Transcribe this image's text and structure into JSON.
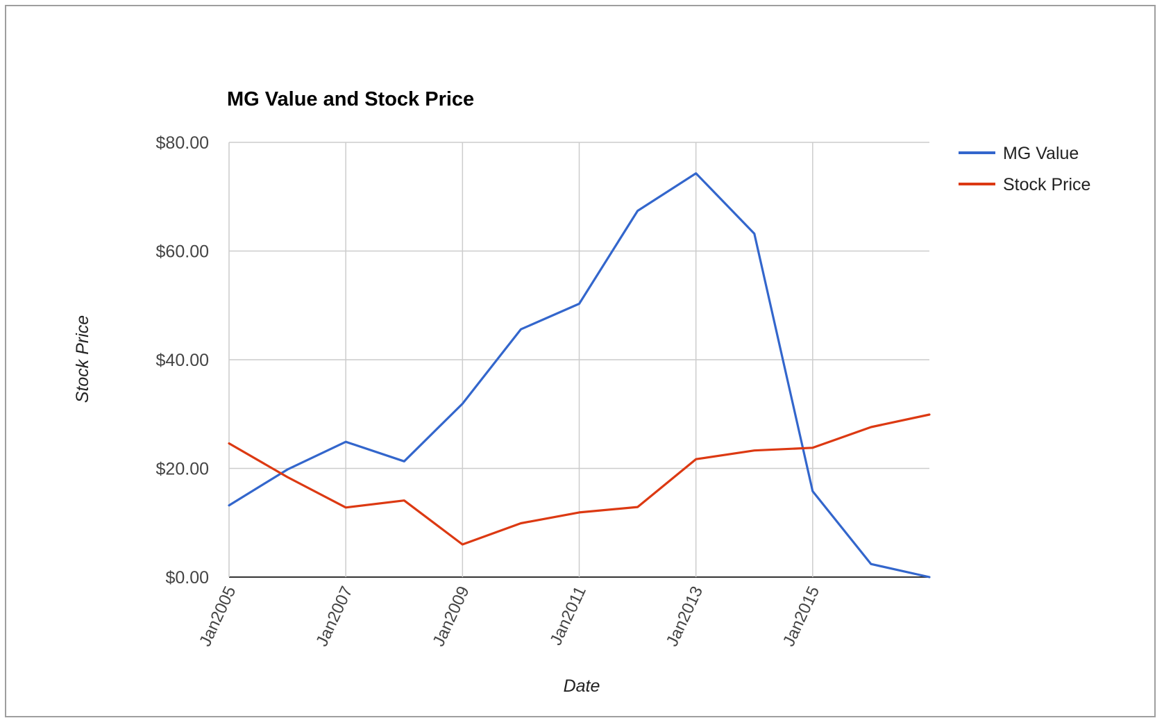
{
  "chart_data": {
    "type": "line",
    "title": "MG Value and Stock Price",
    "xlabel": "Date",
    "ylabel": "Stock Price",
    "x": [
      "2005-01",
      "2006-01",
      "2007-01",
      "2008-01",
      "2009-01",
      "2010-01",
      "2011-01",
      "2012-01",
      "2013-01",
      "2014-01",
      "2015-01",
      "2016-01",
      "2017-01"
    ],
    "x_tick_labels": [
      "Jan2005",
      "Jan2007",
      "Jan2009",
      "Jan2011",
      "Jan2013",
      "Jan2015"
    ],
    "y_tick_labels": [
      "$0.00",
      "$20.00",
      "$40.00",
      "$60.00",
      "$80.00"
    ],
    "ylim": [
      0,
      80
    ],
    "grid": true,
    "legend": "right",
    "series": [
      {
        "name": "MG Value",
        "color": "#3366cc",
        "values": [
          13.2,
          19.8,
          24.9,
          21.3,
          31.9,
          45.6,
          50.3,
          67.4,
          74.3,
          63.2,
          15.8,
          2.4,
          0.0
        ]
      },
      {
        "name": "Stock Price",
        "color": "#dc3912",
        "values": [
          24.6,
          18.4,
          12.8,
          14.1,
          6.0,
          9.9,
          11.9,
          12.9,
          21.7,
          23.3,
          23.8,
          27.6,
          29.9
        ]
      }
    ]
  }
}
